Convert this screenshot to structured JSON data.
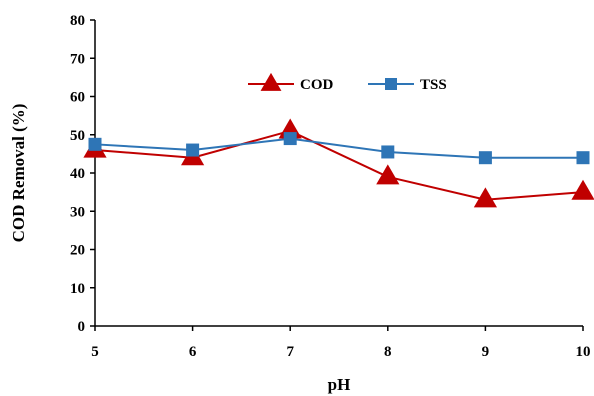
{
  "chart_data": {
    "type": "line",
    "x": [
      5,
      6,
      7,
      8,
      9,
      10
    ],
    "xlabel": "pH",
    "ylabel": "COD Removal (%)",
    "xlim": [
      5,
      10
    ],
    "ylim": [
      0,
      80
    ],
    "x_ticks": [
      5,
      6,
      7,
      8,
      9,
      10
    ],
    "y_ticks": [
      0,
      10,
      20,
      30,
      40,
      50,
      60,
      70,
      80
    ],
    "grid": false,
    "legend_position": "top-center",
    "series": [
      {
        "name": "COD",
        "values": [
          46,
          44,
          51,
          39,
          33,
          35
        ],
        "color": "#C00000",
        "marker": "triangle"
      },
      {
        "name": "TSS",
        "values": [
          47.5,
          46,
          49,
          45.5,
          44,
          44
        ],
        "color": "#2E75B6",
        "marker": "square"
      }
    ]
  }
}
